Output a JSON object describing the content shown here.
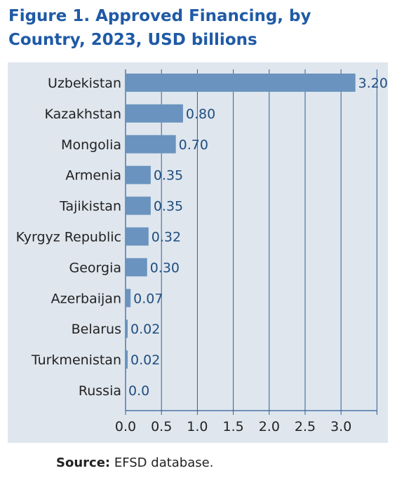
{
  "figure": {
    "title": "Figure 1. Approved Financing, by Country, 2023, USD billions",
    "source_label": "Source:",
    "source_text": "EFSD database."
  },
  "colors": {
    "title": "#1f5aa6",
    "panel_background": "#dfe6ee",
    "bar": "#6a93bf",
    "gridline": "#2e5f94",
    "value_label": "#1f4e80"
  },
  "chart_data": {
    "type": "bar",
    "orientation": "horizontal",
    "title": "Figure 1. Approved Financing, by Country, 2023, USD billions",
    "xlabel": "",
    "ylabel": "",
    "categories": [
      "Uzbekistan",
      "Kazakhstan",
      "Mongolia",
      "Armenia",
      "Tajikistan",
      "Kyrgyz Republic",
      "Georgia",
      "Azerbaijan",
      "Belarus",
      "Turkmenistan",
      "Russia"
    ],
    "values": [
      3.2,
      0.8,
      0.7,
      0.35,
      0.35,
      0.32,
      0.3,
      0.07,
      0.02,
      0.02,
      0.0
    ],
    "value_labels": [
      "3.20",
      "0.80",
      "0.70",
      "0.35",
      "0.35",
      "0.32",
      "0.30",
      "0.07",
      "0.02",
      "0.02",
      "0.0"
    ],
    "xlim": [
      0,
      3.5
    ],
    "xticks": [
      0.0,
      0.5,
      1.0,
      1.5,
      2.0,
      2.5,
      3.0
    ],
    "xtick_labels": [
      "0.0",
      "0.5",
      "1.0",
      "1.5",
      "2.0",
      "2.5",
      "3.0"
    ],
    "grid": "vertical",
    "legend": "none"
  }
}
